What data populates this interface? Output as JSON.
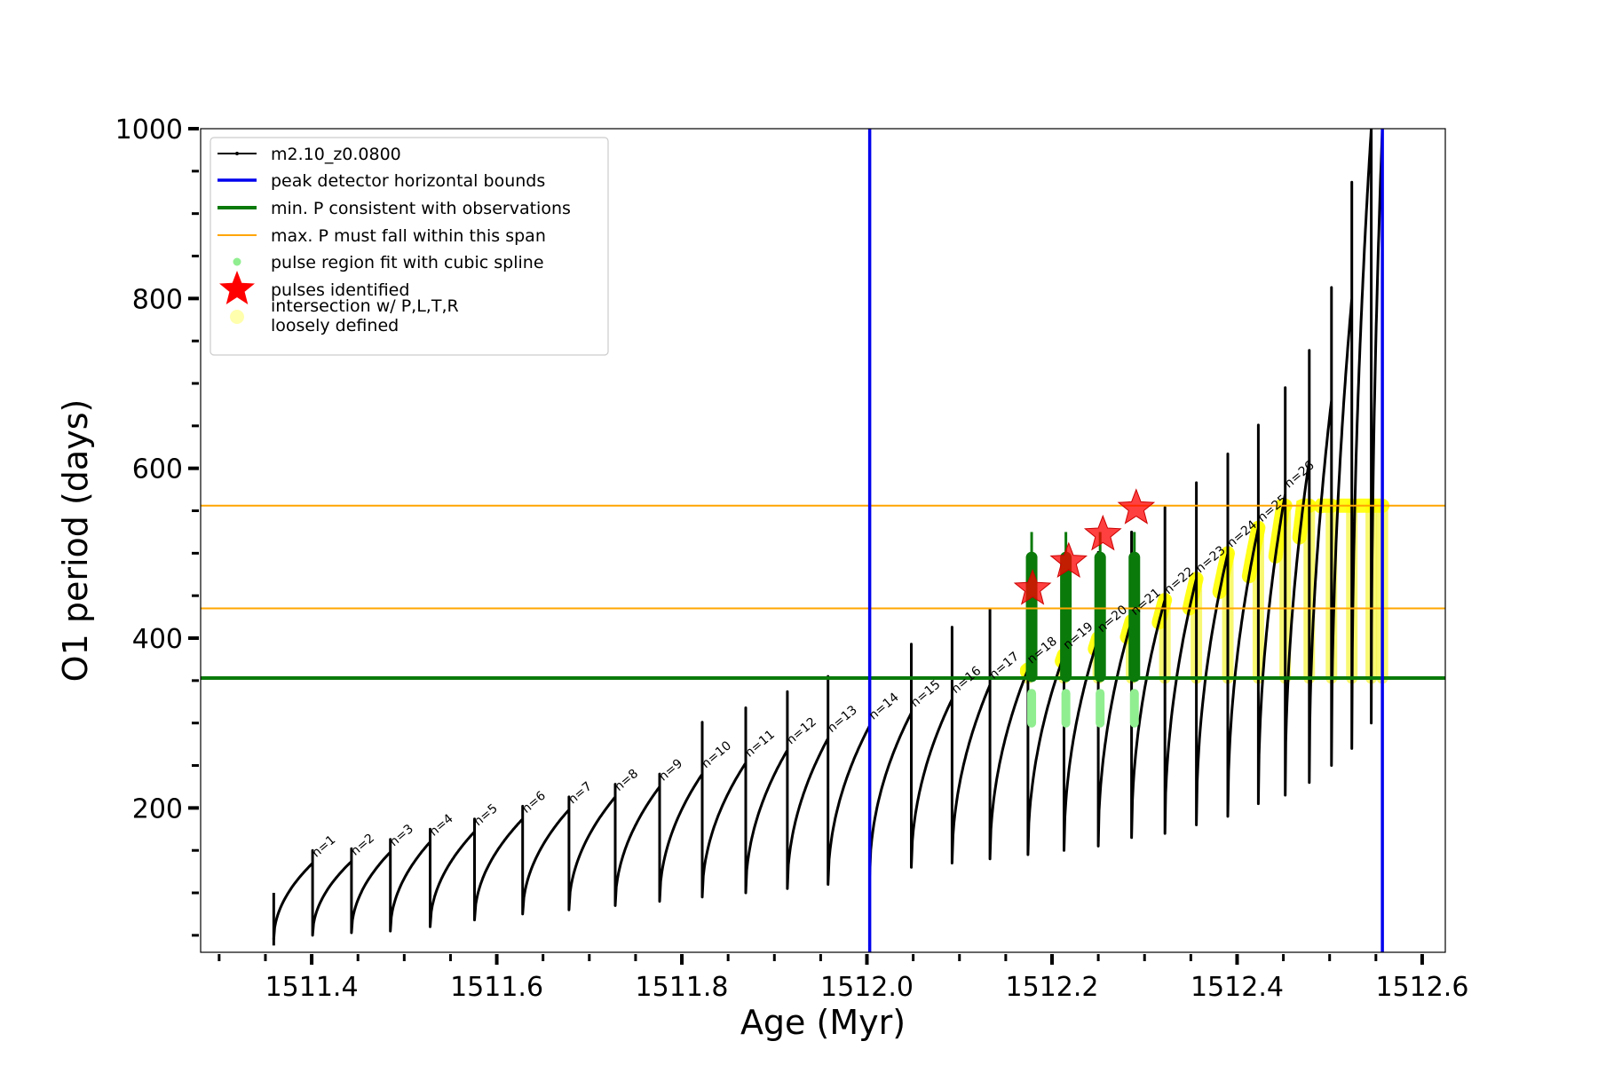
{
  "chart_data": {
    "type": "line",
    "xlabel": "Age (Myr)",
    "ylabel": "O1 period (days)",
    "xlim": [
      1511.28,
      1512.625
    ],
    "ylim": [
      30,
      1000
    ],
    "xticks": [
      1511.4,
      1511.6,
      1511.8,
      1512.0,
      1512.2,
      1512.4,
      1512.6
    ],
    "xtick_labels": [
      "1511.4",
      "1511.6",
      "1511.8",
      "1512.0",
      "1512.2",
      "1512.4",
      "1512.6"
    ],
    "x_minor_step": 0.05,
    "yticks": [
      200,
      400,
      600,
      800,
      1000
    ],
    "ytick_labels": [
      "200",
      "400",
      "600",
      "800",
      "1000"
    ],
    "y_minor_step": 50,
    "legend_position": "upper left",
    "legend": [
      {
        "label": "m2.10_z0.0800",
        "style": "black-line-dot"
      },
      {
        "label": "peak detector horizontal bounds",
        "style": "blue-line"
      },
      {
        "label": "min. P consistent with observations",
        "style": "green-line"
      },
      {
        "label": "max. P must fall within this span",
        "style": "orange-line"
      },
      {
        "label": "pulse region fit with cubic spline",
        "style": "lightgreen-dot"
      },
      {
        "label": "pulses identified",
        "style": "red-star"
      },
      {
        "label": "intersection w/ P,L,T,R",
        "label2": "loosely defined",
        "style": "yellow-dot"
      }
    ],
    "reference_lines": {
      "peak_detector_bounds_x": [
        1512.003,
        1512.557
      ],
      "min_period": 353,
      "max_period_span": [
        435,
        556
      ]
    },
    "cycles": [
      {
        "n": "n=1",
        "x0": 1511.359,
        "x1": 1511.401,
        "min": 45,
        "max": 135
      },
      {
        "n": "n=2",
        "x0": 1511.401,
        "x1": 1511.443,
        "min": 50,
        "max": 137
      },
      {
        "n": "n=3",
        "x0": 1511.443,
        "x1": 1511.485,
        "min": 53,
        "max": 148
      },
      {
        "n": "n=4",
        "x0": 1511.485,
        "x1": 1511.528,
        "min": 55,
        "max": 160
      },
      {
        "n": "n=5",
        "x0": 1511.528,
        "x1": 1511.576,
        "min": 60,
        "max": 172
      },
      {
        "n": "n=6",
        "x0": 1511.576,
        "x1": 1511.628,
        "min": 68,
        "max": 187
      },
      {
        "n": "n=7",
        "x0": 1511.628,
        "x1": 1511.678,
        "min": 75,
        "max": 198
      },
      {
        "n": "n=8",
        "x0": 1511.678,
        "x1": 1511.728,
        "min": 80,
        "max": 213
      },
      {
        "n": "n=9",
        "x0": 1511.728,
        "x1": 1511.776,
        "min": 85,
        "max": 225
      },
      {
        "n": "n=10",
        "x0": 1511.776,
        "x1": 1511.822,
        "min": 90,
        "max": 240
      },
      {
        "n": "n=11",
        "x0": 1511.822,
        "x1": 1511.869,
        "min": 95,
        "max": 253
      },
      {
        "n": "n=12",
        "x0": 1511.869,
        "x1": 1511.914,
        "min": 100,
        "max": 268
      },
      {
        "n": "n=13",
        "x0": 1511.914,
        "x1": 1511.958,
        "min": 105,
        "max": 282
      },
      {
        "n": "n=14",
        "x0": 1511.958,
        "x1": 1512.003,
        "min": 110,
        "max": 297
      },
      {
        "n": "n=15",
        "x0": 1512.003,
        "x1": 1512.048,
        "min": 120,
        "max": 312
      },
      {
        "n": "n=16",
        "x0": 1512.048,
        "x1": 1512.092,
        "min": 130,
        "max": 328
      },
      {
        "n": "n=17",
        "x0": 1512.092,
        "x1": 1512.133,
        "min": 135,
        "max": 345
      },
      {
        "n": "n=18",
        "x0": 1512.133,
        "x1": 1512.174,
        "min": 140,
        "max": 363
      },
      {
        "n": "n=19",
        "x0": 1512.174,
        "x1": 1512.213,
        "min": 145,
        "max": 380
      },
      {
        "n": "n=20",
        "x0": 1512.213,
        "x1": 1512.25,
        "min": 150,
        "max": 400
      },
      {
        "n": "n=21",
        "x0": 1512.25,
        "x1": 1512.286,
        "min": 155,
        "max": 420
      },
      {
        "n": "n=22",
        "x0": 1512.286,
        "x1": 1512.322,
        "min": 165,
        "max": 445
      },
      {
        "n": "n=23",
        "x0": 1512.322,
        "x1": 1512.356,
        "min": 170,
        "max": 470
      },
      {
        "n": "n=24",
        "x0": 1512.356,
        "x1": 1512.39,
        "min": 180,
        "max": 500
      },
      {
        "n": "n=25",
        "x0": 1512.39,
        "x1": 1512.423,
        "min": 190,
        "max": 530
      },
      {
        "n": "n=26",
        "x0": 1512.423,
        "x1": 1512.452,
        "min": 205,
        "max": 570
      },
      {
        "n": "",
        "x0": 1512.452,
        "x1": 1512.478,
        "min": 215,
        "max": 610
      },
      {
        "n": "",
        "x0": 1512.478,
        "x1": 1512.502,
        "min": 230,
        "max": 680
      },
      {
        "n": "",
        "x0": 1512.502,
        "x1": 1512.524,
        "min": 250,
        "max": 800
      },
      {
        "n": "",
        "x0": 1512.524,
        "x1": 1512.545,
        "min": 270,
        "max": 1000
      },
      {
        "n": "",
        "x0": 1512.545,
        "x1": 1512.557,
        "min": 300,
        "max": 1000
      }
    ],
    "pulses_identified": [
      {
        "x": 1512.179,
        "y": 458
      },
      {
        "x": 1512.218,
        "y": 490
      },
      {
        "x": 1512.255,
        "y": 522
      },
      {
        "x": 1512.291,
        "y": 553
      }
    ],
    "spline_fit_regions_x": [
      1512.178,
      1512.215,
      1512.252,
      1512.289
    ]
  }
}
